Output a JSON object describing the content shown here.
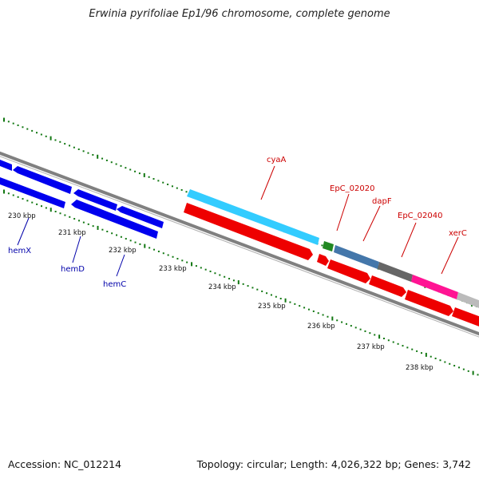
{
  "title": "Erwinia pyrifoliae Ep1/96 chromosome, complete genome",
  "footer": {
    "accession": "Accession: NC_012214",
    "topology": "Topology: circular; Length: 4,026,322 bp; Genes: 3,742"
  },
  "scale_labels": [
    "230 kbp",
    "231 kbp",
    "232 kbp",
    "233 kbp",
    "234 kbp",
    "235 kbp",
    "236 kbp",
    "237 kbp",
    "238 kbp"
  ],
  "gene_labels": [
    {
      "text": "hemX",
      "strand": "reverse"
    },
    {
      "text": "hemD",
      "strand": "reverse"
    },
    {
      "text": "hemC",
      "strand": "reverse"
    },
    {
      "text": "cyaA",
      "strand": "forward"
    },
    {
      "text": "EpC_02020",
      "strand": "forward"
    },
    {
      "text": "dapF",
      "strand": "forward"
    },
    {
      "text": "EpC_02040",
      "strand": "forward"
    },
    {
      "text": "xerC",
      "strand": "forward"
    }
  ],
  "colors": {
    "reverse_genes": "#0000ee",
    "forward_genes": "#ee0000",
    "backbone": "#808080",
    "ticks": "#117711",
    "cyaA": "#33ccff",
    "EpC_02020": "#228822",
    "dapF": "#4477aa",
    "EpC_02040_dark": "#666666",
    "pink": "#ff1493",
    "light_gray": "#bbbbbb"
  }
}
